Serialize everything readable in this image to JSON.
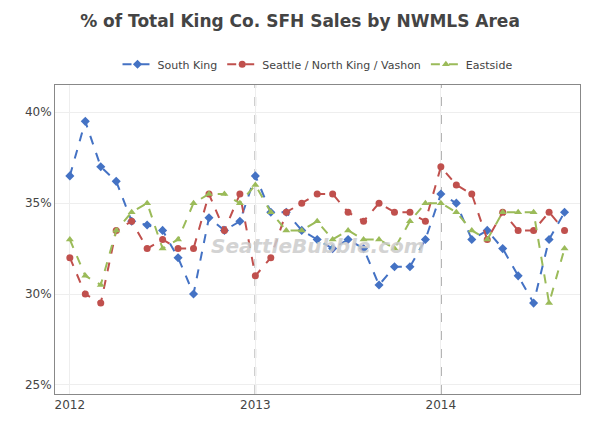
{
  "chart_data": {
    "type": "line",
    "title": "% of Total King Co. SFH Sales by NWMLS Area",
    "x": [
      2012.0,
      2012.0833333333333,
      2012.1666666666667,
      2012.25,
      2012.3333333333333,
      2012.4166666666667,
      2012.5,
      2012.5833333333333,
      2012.6666666666667,
      2012.75,
      2012.8333333333333,
      2012.9166666666667,
      2013.0,
      2013.0833333333333,
      2013.1666666666667,
      2013.25,
      2013.3333333333333,
      2013.4166666666667,
      2013.5,
      2013.5833333333333,
      2013.6666666666667,
      2013.75,
      2013.8333333333333,
      2013.9166666666667,
      2014.0,
      2014.0833333333333,
      2014.1666666666667,
      2014.25,
      2014.3333333333333,
      2014.4166666666667,
      2014.5,
      2014.5833333333333,
      2014.6666666666667
    ],
    "series": [
      {
        "name": "South King",
        "color": "#4472C4",
        "marker": "diamond",
        "line_style": "dashed",
        "values": [
          36.5,
          39.5,
          37.0,
          36.2,
          34.0,
          33.8,
          33.5,
          32.0,
          30.0,
          34.2,
          33.5,
          34.0,
          36.5,
          34.5,
          34.5,
          33.5,
          33.0,
          32.5,
          33.0,
          32.5,
          30.5,
          31.5,
          31.5,
          33.0,
          35.5,
          35.0,
          33.0,
          33.5,
          32.5,
          31.0,
          29.5,
          33.0,
          34.5
        ]
      },
      {
        "name": "Seattle / North King / Vashon",
        "color": "#C0504D",
        "marker": "circle",
        "line_style": "dashed",
        "values": [
          32.0,
          30.0,
          29.5,
          33.5,
          34.0,
          32.5,
          33.0,
          32.5,
          32.5,
          35.5,
          33.5,
          35.5,
          31.0,
          32.0,
          34.5,
          35.0,
          35.5,
          35.5,
          34.5,
          34.0,
          35.0,
          34.5,
          34.5,
          34.0,
          37.0,
          36.0,
          35.5,
          33.0,
          34.5,
          33.5,
          33.5,
          34.5,
          33.5
        ]
      },
      {
        "name": "Eastside",
        "color": "#9BBB59",
        "marker": "triangle-up",
        "line_style": "dashed",
        "values": [
          33.0,
          31.0,
          30.5,
          33.5,
          34.5,
          35.0,
          32.5,
          33.0,
          35.0,
          35.5,
          35.5,
          35.0,
          36.0,
          34.5,
          33.5,
          33.5,
          34.0,
          33.0,
          33.5,
          33.0,
          33.0,
          32.5,
          34.0,
          35.0,
          35.0,
          34.5,
          33.5,
          33.0,
          34.5,
          34.5,
          34.5,
          29.5,
          32.5
        ]
      }
    ],
    "xlim": [
      2011.92,
      2014.75
    ],
    "xticks": [
      2012,
      2013,
      2014
    ],
    "ylim": [
      24.5,
      41.5
    ],
    "yticks": [
      {
        "value": 25,
        "label": "25%"
      },
      {
        "value": 30,
        "label": "30%"
      },
      {
        "value": 35,
        "label": "35%"
      },
      {
        "value": 40,
        "label": "40%"
      }
    ],
    "vlines": [
      2013.0,
      2014.0
    ],
    "annotations": [
      "SeattleBubble.com"
    ],
    "grid": true,
    "legend": "upper center"
  }
}
